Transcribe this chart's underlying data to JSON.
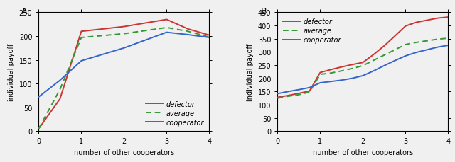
{
  "panel_A": {
    "label": "A",
    "x": [
      0,
      0.5,
      1,
      2,
      3,
      3.5,
      4
    ],
    "defector": [
      5,
      68,
      210,
      220,
      235,
      215,
      202
    ],
    "average": [
      5,
      88,
      197,
      205,
      218,
      210,
      198
    ],
    "cooperator": [
      72,
      107,
      148,
      175,
      208,
      203,
      197
    ],
    "ylim": [
      0,
      250
    ],
    "yticks": [
      0,
      50,
      100,
      150,
      200,
      250
    ],
    "xticks": [
      0,
      1,
      2,
      3,
      4
    ],
    "xlim": [
      0,
      4
    ],
    "xlabel": "number of other cooperators",
    "ylabel": "individual payoff",
    "legend_loc": "lower right",
    "legend_bbox": null
  },
  "panel_B": {
    "label": "B",
    "x": [
      0,
      0.25,
      0.5,
      0.75,
      1,
      1.25,
      1.5,
      1.75,
      2,
      2.25,
      2.5,
      2.75,
      3,
      3.25,
      3.5,
      3.75,
      4
    ],
    "defector": [
      128,
      135,
      143,
      152,
      222,
      233,
      243,
      252,
      260,
      290,
      323,
      360,
      398,
      412,
      420,
      428,
      432
    ],
    "average": [
      125,
      132,
      138,
      148,
      215,
      220,
      228,
      237,
      248,
      268,
      288,
      308,
      328,
      336,
      342,
      348,
      352
    ],
    "cooperator": [
      142,
      150,
      157,
      165,
      183,
      188,
      193,
      200,
      210,
      228,
      248,
      267,
      285,
      298,
      308,
      318,
      325
    ],
    "ylim": [
      0,
      450
    ],
    "yticks": [
      0,
      50,
      100,
      150,
      200,
      250,
      300,
      350,
      400,
      450
    ],
    "xticks": [
      0,
      1,
      2,
      3,
      4
    ],
    "xlim": [
      0,
      4
    ],
    "xlabel": "number of other cooperators",
    "ylabel": "individual payoff",
    "legend_loc": "upper left",
    "legend_bbox": null
  },
  "defector_color": "#cc3333",
  "average_color": "#339933",
  "cooperator_color": "#3366cc",
  "linewidth": 1.4,
  "fontsize_axis_label": 7,
  "fontsize_tick": 7,
  "fontsize_legend": 7,
  "fontsize_panel_label": 9,
  "bg_color": "#f0f0f0"
}
